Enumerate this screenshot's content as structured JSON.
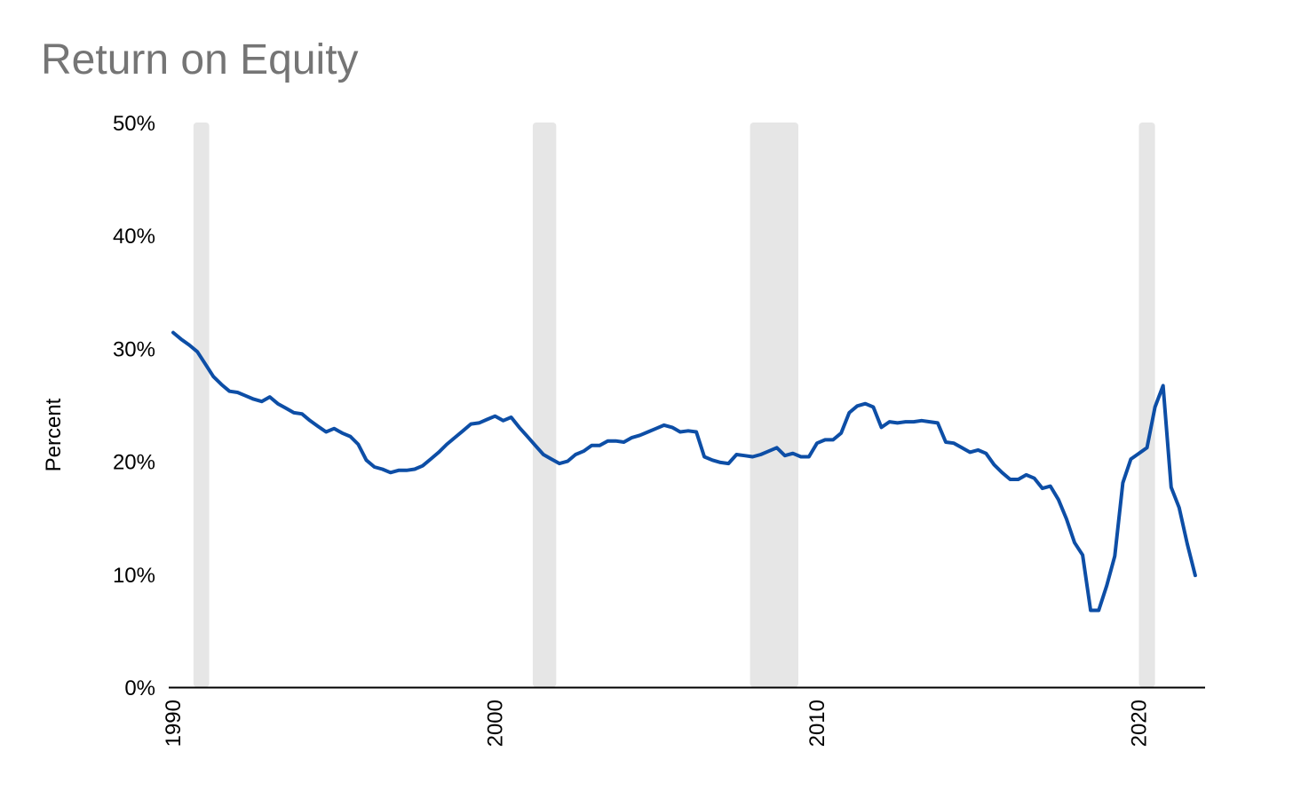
{
  "chart_data": {
    "type": "line",
    "title": "Return on Equity",
    "xlabel": "",
    "ylabel": "Percent",
    "xlim": [
      1990,
      2022
    ],
    "ylim": [
      0,
      50
    ],
    "y_ticks": [
      "0%",
      "10%",
      "20%",
      "30%",
      "40%",
      "50%"
    ],
    "y_tick_values": [
      0,
      10,
      20,
      30,
      40,
      50
    ],
    "x_ticks": [
      "1990",
      "2000",
      "2010",
      "2020"
    ],
    "x_tick_values": [
      1990,
      2000,
      2010,
      2020
    ],
    "grid": false,
    "legend": "none",
    "line_color": "#0d4ea6",
    "recession_color": "#e6e6e6",
    "recessions": [
      [
        1990.63,
        1991.12
      ],
      [
        2001.17,
        2001.9
      ],
      [
        2007.92,
        2009.42
      ],
      [
        2020.0,
        2020.5
      ]
    ],
    "series": [
      {
        "x": [
          1990.0,
          1990.25,
          1990.5,
          1990.75,
          1991.0,
          1991.25,
          1991.5,
          1991.75,
          1992.0,
          1992.25,
          1992.5,
          1992.75,
          1993.0,
          1993.25,
          1993.5,
          1993.75,
          1994.0,
          1994.25,
          1994.5,
          1994.75,
          1995.0,
          1995.25,
          1995.5,
          1995.75,
          1996.0,
          1996.25,
          1996.5,
          1996.75,
          1997.0,
          1997.25,
          1997.5,
          1997.75,
          1998.0,
          1998.25,
          1998.5,
          1998.75,
          1999.0,
          1999.25,
          1999.5,
          1999.75,
          2000.0,
          2000.25,
          2000.5,
          2000.75,
          2001.0,
          2001.25,
          2001.5,
          2001.75,
          2002.0,
          2002.25,
          2002.5,
          2002.75,
          2003.0,
          2003.25,
          2003.5,
          2003.75,
          2004.0,
          2004.25,
          2004.5,
          2004.75,
          2005.0,
          2005.25,
          2005.5,
          2005.75,
          2006.0,
          2006.25,
          2006.5,
          2006.75,
          2007.0,
          2007.25,
          2007.5,
          2007.75,
          2008.0,
          2008.25,
          2008.5,
          2008.75,
          2009.0,
          2009.25,
          2009.5,
          2009.75,
          2010.0,
          2010.25,
          2010.5,
          2010.75,
          2011.0,
          2011.25,
          2011.5,
          2011.75,
          2012.0,
          2012.25,
          2012.5,
          2012.75,
          2013.0,
          2013.25,
          2013.5,
          2013.75,
          2014.0,
          2014.25,
          2014.5,
          2014.75,
          2015.0,
          2015.25,
          2015.5,
          2015.75,
          2016.0,
          2016.25,
          2016.5,
          2016.75,
          2017.0,
          2017.25,
          2017.5,
          2017.75,
          2018.0,
          2018.25,
          2018.5,
          2018.75,
          2019.0,
          2019.25,
          2019.5,
          2019.75,
          2020.0,
          2020.25,
          2020.5,
          2020.75,
          2021.0,
          2021.25,
          2021.5,
          2021.75
        ],
        "y": [
          31.4,
          30.8,
          30.3,
          29.7,
          28.6,
          27.5,
          26.8,
          26.2,
          26.1,
          25.8,
          25.5,
          25.3,
          25.7,
          25.1,
          24.7,
          24.3,
          24.2,
          23.6,
          23.1,
          22.6,
          22.9,
          22.5,
          22.2,
          21.5,
          20.1,
          19.5,
          19.3,
          19.0,
          19.2,
          19.2,
          19.3,
          19.6,
          20.2,
          20.8,
          21.5,
          22.1,
          22.7,
          23.3,
          23.4,
          23.7,
          24.0,
          23.6,
          23.9,
          23.0,
          22.2,
          21.4,
          20.6,
          20.2,
          19.8,
          20.0,
          20.6,
          20.9,
          21.4,
          21.4,
          21.8,
          21.8,
          21.7,
          22.1,
          22.3,
          22.6,
          22.9,
          23.2,
          23.0,
          22.6,
          22.7,
          22.6,
          20.4,
          20.1,
          19.9,
          19.8,
          20.6,
          20.5,
          20.4,
          20.6,
          20.9,
          21.2,
          20.5,
          20.7,
          20.4,
          20.4,
          21.6,
          21.9,
          21.9,
          22.5,
          24.3,
          24.9,
          25.1,
          24.8,
          23.0,
          23.5,
          23.4,
          23.5,
          23.5,
          23.6,
          23.5,
          23.4,
          21.7,
          21.6,
          21.2,
          20.8,
          21.0,
          20.7,
          19.7,
          19.0,
          18.4,
          18.4,
          18.8,
          18.5,
          17.6,
          17.8,
          16.6,
          14.9,
          12.8,
          11.7,
          6.8,
          6.8,
          9.0,
          11.6,
          18.1,
          20.2,
          20.7,
          21.2,
          24.8,
          26.7,
          17.7,
          15.9,
          12.7,
          9.9
        ]
      }
    ]
  }
}
